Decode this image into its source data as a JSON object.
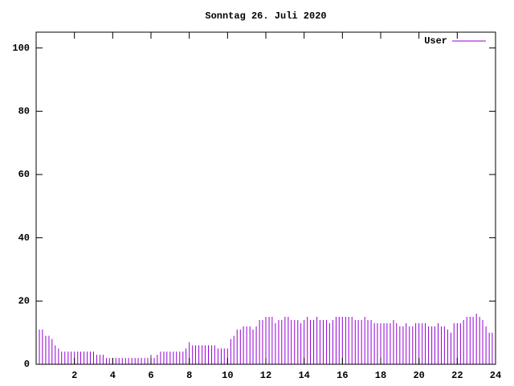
{
  "chart_data": {
    "type": "impulse",
    "title": "Sonntag 26. Juli 2020",
    "x": [
      0,
      0.17,
      0.33,
      0.5,
      0.67,
      0.83,
      1,
      1.17,
      1.33,
      1.5,
      1.67,
      1.83,
      2,
      2.17,
      2.33,
      2.5,
      2.67,
      2.83,
      3,
      3.17,
      3.33,
      3.5,
      3.67,
      3.83,
      4,
      4.17,
      4.33,
      4.5,
      4.67,
      4.83,
      5,
      5.17,
      5.33,
      5.5,
      5.67,
      5.83,
      6,
      6.17,
      6.33,
      6.5,
      6.67,
      6.83,
      7,
      7.17,
      7.33,
      7.5,
      7.67,
      7.83,
      8,
      8.17,
      8.33,
      8.5,
      8.67,
      8.83,
      9,
      9.17,
      9.33,
      9.5,
      9.67,
      9.83,
      10,
      10.17,
      10.33,
      10.5,
      10.67,
      10.83,
      11,
      11.17,
      11.33,
      11.5,
      11.67,
      11.83,
      12,
      12.17,
      12.33,
      12.5,
      12.67,
      12.83,
      13,
      13.17,
      13.33,
      13.5,
      13.67,
      13.83,
      14,
      14.17,
      14.33,
      14.5,
      14.67,
      14.83,
      15,
      15.17,
      15.33,
      15.5,
      15.67,
      15.83,
      16,
      16.17,
      16.33,
      16.5,
      16.67,
      16.83,
      17,
      17.17,
      17.33,
      17.5,
      17.67,
      17.83,
      18,
      18.17,
      18.33,
      18.5,
      18.67,
      18.83,
      19,
      19.17,
      19.33,
      19.5,
      19.67,
      19.83,
      20,
      20.17,
      20.33,
      20.5,
      20.67,
      20.83,
      21,
      21.17,
      21.33,
      21.5,
      21.67,
      21.83,
      22,
      22.17,
      22.33,
      22.5,
      22.67,
      22.83,
      23,
      23.17,
      23.33,
      23.5,
      23.67,
      23.83
    ],
    "series": [
      {
        "name": "User",
        "color": "#9400d3",
        "values": [
          11,
          11,
          11,
          9,
          9,
          8,
          6,
          5,
          4,
          4,
          4,
          4,
          4,
          4,
          4,
          4,
          4,
          4,
          4,
          3,
          3,
          3,
          2,
          2,
          2,
          2,
          2,
          2,
          2,
          2,
          2,
          2,
          2,
          2,
          2,
          2,
          3,
          2,
          3,
          4,
          4,
          4,
          4,
          4,
          4,
          4,
          4,
          5,
          7,
          6,
          6,
          6,
          6,
          6,
          6,
          6,
          6,
          5,
          5,
          5,
          5,
          8,
          9,
          11,
          11,
          12,
          12,
          12,
          11,
          12,
          14,
          14,
          15,
          15,
          15,
          13,
          14,
          14,
          15,
          15,
          14,
          14,
          14,
          13,
          14,
          15,
          14,
          14,
          15,
          14,
          14,
          14,
          13,
          14,
          15,
          15,
          15,
          15,
          15,
          15,
          14,
          14,
          14,
          15,
          14,
          14,
          13,
          13,
          13,
          13,
          13,
          13,
          14,
          13,
          12,
          12,
          13,
          12,
          12,
          13,
          13,
          13,
          13,
          12,
          12,
          12,
          13,
          12,
          12,
          11,
          10,
          13,
          13,
          13,
          14,
          15,
          15,
          15,
          16,
          15,
          14,
          12,
          10,
          10
        ]
      }
    ],
    "xlim": [
      0,
      24
    ],
    "xticks": [
      2,
      4,
      6,
      8,
      10,
      12,
      14,
      16,
      18,
      20,
      22,
      24
    ],
    "ylim": [
      0,
      105
    ],
    "yticks": [
      0,
      20,
      40,
      60,
      80,
      100
    ],
    "legend": "top-right"
  }
}
